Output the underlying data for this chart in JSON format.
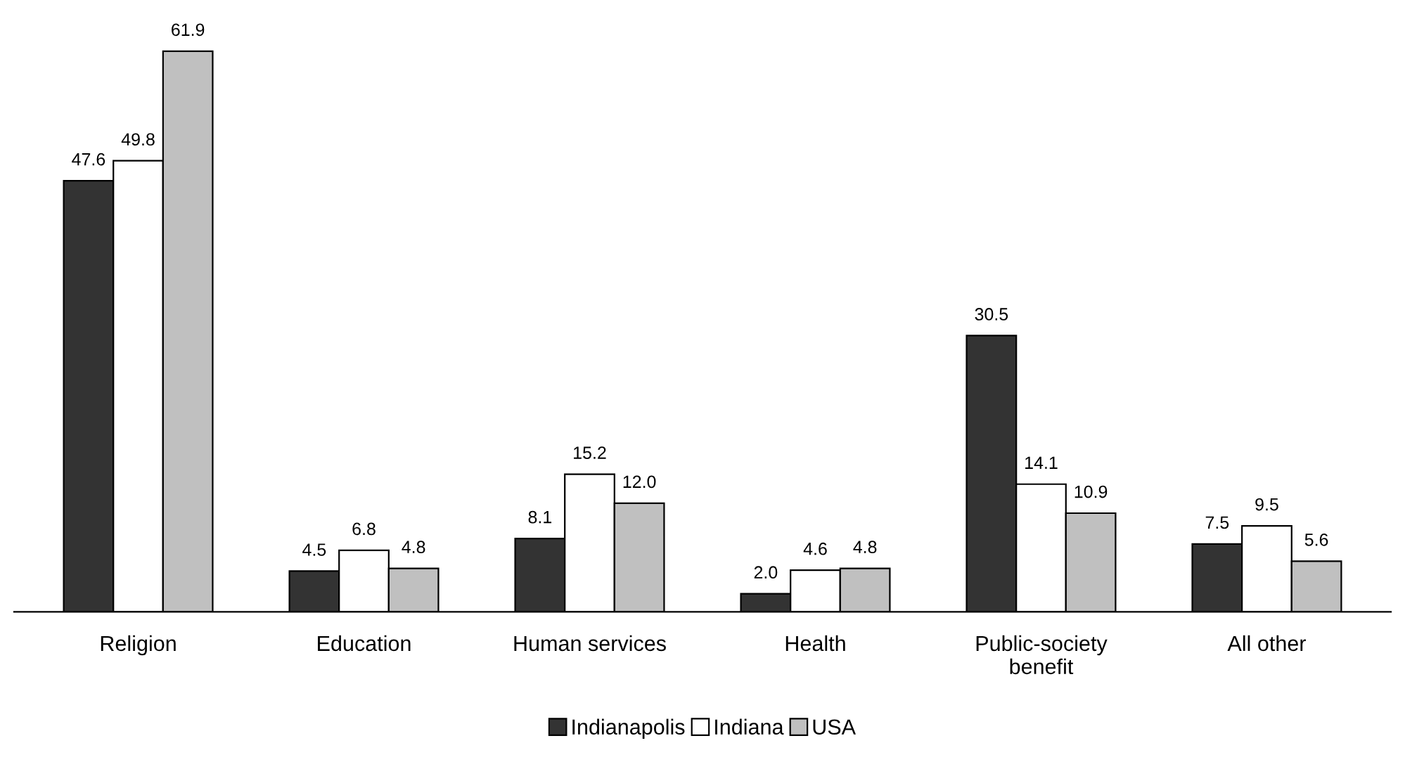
{
  "chart_data": {
    "type": "bar",
    "categories": [
      "Religion",
      "Education",
      "Human services",
      "Health",
      "Public-society\nbenefit",
      "All other"
    ],
    "series": [
      {
        "name": "Indianapolis",
        "color": "#333333",
        "values": [
          47.6,
          4.5,
          8.1,
          2.0,
          30.5,
          7.5
        ],
        "value_labels": [
          "47.6",
          "4.5",
          "8.1",
          "2.0",
          "30.5",
          "7.5"
        ]
      },
      {
        "name": "Indiana",
        "color": "#ffffff",
        "values": [
          49.8,
          6.8,
          15.2,
          4.6,
          14.1,
          9.5
        ],
        "value_labels": [
          "49.8",
          "6.8",
          "15.2",
          "4.6",
          "14.1",
          "9.5"
        ]
      },
      {
        "name": "USA",
        "color": "#c0c0c0",
        "values": [
          61.9,
          4.8,
          12.0,
          4.8,
          10.9,
          5.6
        ],
        "value_labels": [
          "61.9",
          "4.8",
          "12.0",
          "4.8",
          "10.9",
          "5.6"
        ]
      }
    ],
    "legend": "bottom",
    "grid": false
  }
}
